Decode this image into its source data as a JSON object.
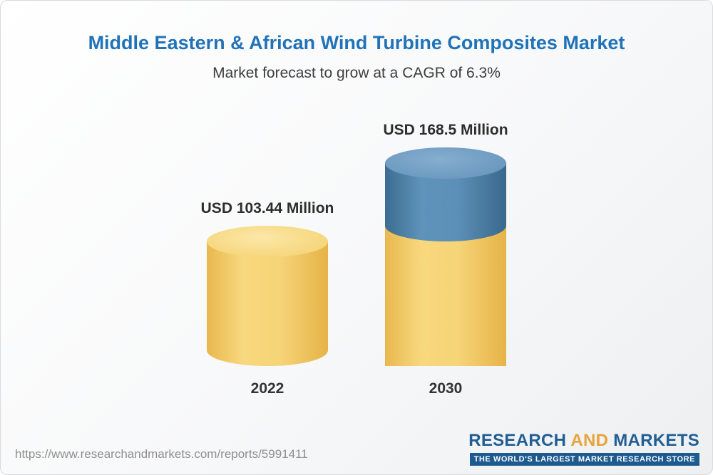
{
  "chart_data": {
    "type": "bar",
    "variant": "3d-cylinder",
    "title": "Middle Eastern & African Wind Turbine Composites Market",
    "subtitle": "Market forecast to grow at a CAGR of 6.3%",
    "categories": [
      "2022",
      "2030"
    ],
    "values": [
      103.44,
      168.5
    ],
    "unit": "USD Million",
    "value_labels": [
      "USD 103.44 Million",
      "USD 168.5 Million"
    ],
    "ylim": [
      0,
      180
    ],
    "legend": "none",
    "grid": false,
    "colors": {
      "base": "#f2cd6e",
      "growth": "#4f82ab"
    }
  },
  "footer": {
    "url": "https://www.researchandmarkets.com/reports/5991411",
    "logo": {
      "word1": "RESEARCH",
      "word2": "AND",
      "word3": "MARKETS",
      "tagline": "THE WORLD'S LARGEST MARKET RESEARCH STORE"
    }
  }
}
